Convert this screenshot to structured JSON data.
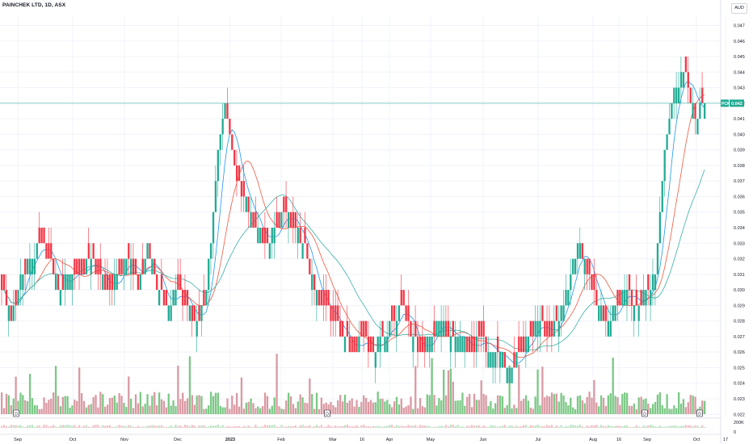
{
  "header": {
    "symbol_title": "PAINCHEK LTD, 1D, ASX",
    "currency": "AUD"
  },
  "price_tag": {
    "ticker": "PCK",
    "value": "0.042"
  },
  "event_markers": [
    "D",
    "D",
    "D",
    "D"
  ],
  "colors": {
    "up": "#22ab94",
    "down": "#f23645",
    "volume_up": "#7cc886",
    "volume_down": "#d99aa3",
    "ma_fast": "#2196f3",
    "ma_mid": "#f0593f",
    "ma_slow": "#3bb0a8",
    "price_line": "#22ab94",
    "grid": "#f0f3fa"
  },
  "chart_data": {
    "type": "candlestick",
    "title": "PAINCHEK LTD, 1D, ASX",
    "grid": true,
    "y_axis": {
      "ticks": [
        "0.047",
        "0.046",
        "0.045",
        "0.044",
        "0.043",
        "0.042",
        "0.041",
        "0.040",
        "0.039",
        "0.038",
        "0.037",
        "0.036",
        "0.035",
        "0.034",
        "0.033",
        "0.032",
        "0.031",
        "0.030",
        "0.029",
        "0.028",
        "0.027",
        "0.026",
        "0.025",
        "0.024",
        "0.023",
        "0.022"
      ],
      "range": [
        0.0218,
        0.0478
      ]
    },
    "volume_axis": {
      "ticks": [
        "200K",
        "0"
      ]
    },
    "x_axis": {
      "ticks": [
        "Sep",
        "Oct",
        "Nov",
        "Dec",
        "2023",
        "Feb",
        "Mar",
        "16",
        "Apr",
        "May",
        "Jun",
        "Jul",
        "Aug",
        "16",
        "Sep",
        "Oct",
        "17"
      ]
    },
    "current_price": 0.042,
    "series": [
      {
        "kind": "ohlc",
        "approx_closes_by_period": {
          "Sep": [
            0.029,
            0.03,
            0.031,
            0.04,
            0.043,
            0.044
          ],
          "Oct": [
            0.041,
            0.042
          ],
          "Nov": [
            0.033,
            0.03,
            0.029,
            0.03,
            0.029,
            0.028
          ],
          "Dec": [
            0.03,
            0.038,
            0.042,
            0.037,
            0.036,
            0.034
          ],
          "Jan": [
            0.033,
            0.034,
            0.035,
            0.034,
            0.033
          ],
          "Feb": [
            0.03,
            0.029,
            0.028,
            0.027,
            0.026
          ],
          "Mar": [
            0.027,
            0.026,
            0.027,
            0.028,
            0.029,
            0.027
          ],
          "Apr": [
            0.026,
            0.027,
            0.028,
            0.027
          ],
          "May": [
            0.027,
            0.026,
            0.027,
            0.026
          ],
          "Jun": [
            0.026,
            0.025,
            0.026,
            0.027
          ],
          "Jul": [
            0.028,
            0.027,
            0.028,
            0.03,
            0.033
          ],
          "Aug": [
            0.031,
            0.029,
            0.028,
            0.029,
            0.03
          ]
        }
      }
    ]
  }
}
